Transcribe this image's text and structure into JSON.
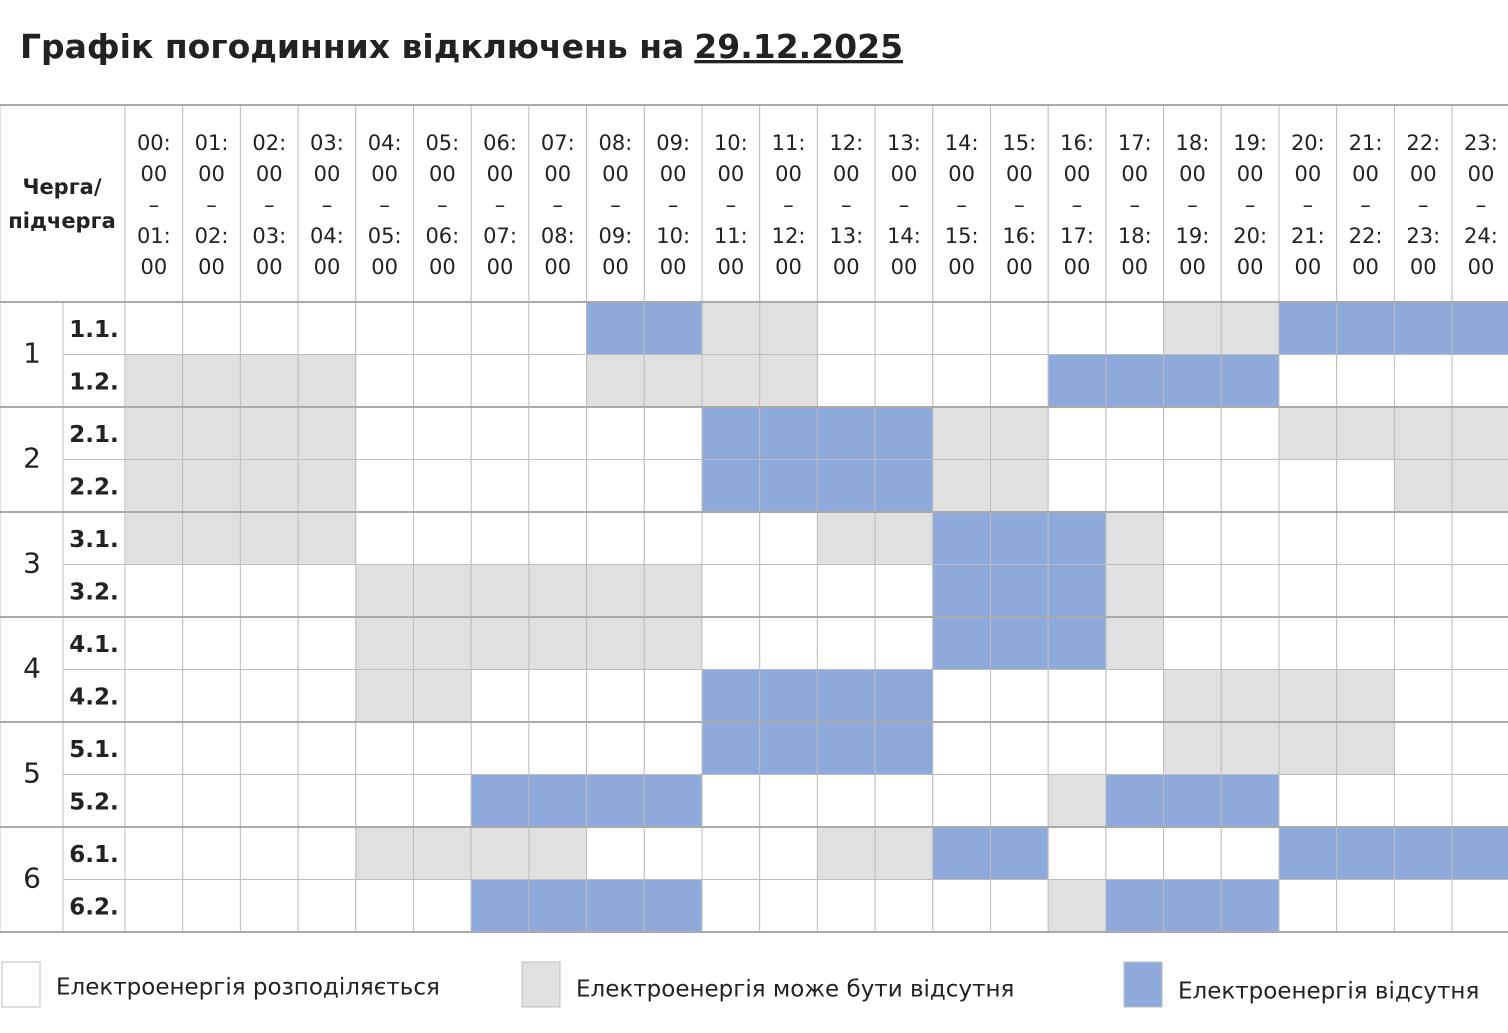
{
  "title": "Графік погодинних відключень на",
  "date": "29.12.2025",
  "table": {
    "corner": [
      "Черга/",
      "підчерга"
    ],
    "hours": [
      [
        "00:",
        "00",
        "–",
        "01:",
        "00"
      ],
      [
        "01:",
        "00",
        "–",
        "02:",
        "00"
      ],
      [
        "02:",
        "00",
        "–",
        "03:",
        "00"
      ],
      [
        "03:",
        "00",
        "–",
        "04:",
        "00"
      ],
      [
        "04:",
        "00",
        "–",
        "05:",
        "00"
      ],
      [
        "05:",
        "00",
        "–",
        "06:",
        "00"
      ],
      [
        "06:",
        "00",
        "–",
        "07:",
        "00"
      ],
      [
        "07:",
        "00",
        "–",
        "08:",
        "00"
      ],
      [
        "08:",
        "00",
        "–",
        "09:",
        "00"
      ],
      [
        "09:",
        "00",
        "–",
        "10:",
        "00"
      ],
      [
        "10:",
        "00",
        "–",
        "11:",
        "00"
      ],
      [
        "11:",
        "00",
        "–",
        "12:",
        "00"
      ],
      [
        "12:",
        "00",
        "–",
        "13:",
        "00"
      ],
      [
        "13:",
        "00",
        "–",
        "14:",
        "00"
      ],
      [
        "14:",
        "00",
        "–",
        "15:",
        "00"
      ],
      [
        "15:",
        "00",
        "–",
        "16:",
        "00"
      ],
      [
        "16:",
        "00",
        "–",
        "17:",
        "00"
      ],
      [
        "17:",
        "00",
        "–",
        "18:",
        "00"
      ],
      [
        "18:",
        "00",
        "–",
        "19:",
        "00"
      ],
      [
        "19:",
        "00",
        "–",
        "20:",
        "00"
      ],
      [
        "20:",
        "00",
        "–",
        "21:",
        "00"
      ],
      [
        "21:",
        "00",
        "–",
        "22:",
        "00"
      ],
      [
        "22:",
        "00",
        "–",
        "23:",
        "00"
      ],
      [
        "23:",
        "00",
        "–",
        "24:",
        "00"
      ]
    ],
    "states": [
      {
        "label": "Електроенергія розподіляється",
        "color": "#ffffff"
      },
      {
        "label": "Електроенергія може бути відсутня",
        "color": "#e0e0e0"
      },
      {
        "label": "Електроенергія відсутня",
        "color": "#8eaadc"
      }
    ],
    "groups": [
      {
        "label": "1",
        "rows": [
          {
            "label": "1.1.",
            "cells": [
              0,
              0,
              0,
              0,
              0,
              0,
              0,
              0,
              2,
              2,
              1,
              1,
              0,
              0,
              0,
              0,
              0,
              0,
              1,
              1,
              2,
              2,
              2,
              2
            ]
          },
          {
            "label": "1.2.",
            "cells": [
              1,
              1,
              1,
              1,
              0,
              0,
              0,
              0,
              1,
              1,
              1,
              1,
              0,
              0,
              0,
              0,
              2,
              2,
              2,
              2,
              0,
              0,
              0,
              0
            ]
          }
        ]
      },
      {
        "label": "2",
        "rows": [
          {
            "label": "2.1.",
            "cells": [
              1,
              1,
              1,
              1,
              0,
              0,
              0,
              0,
              0,
              0,
              2,
              2,
              2,
              2,
              1,
              1,
              0,
              0,
              0,
              0,
              1,
              1,
              1,
              1
            ]
          },
          {
            "label": "2.2.",
            "cells": [
              1,
              1,
              1,
              1,
              0,
              0,
              0,
              0,
              0,
              0,
              2,
              2,
              2,
              2,
              1,
              1,
              0,
              0,
              0,
              0,
              0,
              0,
              1,
              1
            ]
          }
        ]
      },
      {
        "label": "3",
        "rows": [
          {
            "label": "3.1.",
            "cells": [
              1,
              1,
              1,
              1,
              0,
              0,
              0,
              0,
              0,
              0,
              0,
              0,
              1,
              1,
              2,
              2,
              2,
              1,
              0,
              0,
              0,
              0,
              0,
              0
            ]
          },
          {
            "label": "3.2.",
            "cells": [
              0,
              0,
              0,
              0,
              1,
              1,
              1,
              1,
              1,
              1,
              0,
              0,
              0,
              0,
              2,
              2,
              2,
              1,
              0,
              0,
              0,
              0,
              0,
              0
            ]
          }
        ]
      },
      {
        "label": "4",
        "rows": [
          {
            "label": "4.1.",
            "cells": [
              0,
              0,
              0,
              0,
              1,
              1,
              1,
              1,
              1,
              1,
              0,
              0,
              0,
              0,
              2,
              2,
              2,
              1,
              0,
              0,
              0,
              0,
              0,
              0
            ]
          },
          {
            "label": "4.2.",
            "cells": [
              0,
              0,
              0,
              0,
              1,
              1,
              0,
              0,
              0,
              0,
              2,
              2,
              2,
              2,
              0,
              0,
              0,
              0,
              1,
              1,
              1,
              1,
              0,
              0
            ]
          }
        ]
      },
      {
        "label": "5",
        "rows": [
          {
            "label": "5.1.",
            "cells": [
              0,
              0,
              0,
              0,
              0,
              0,
              0,
              0,
              0,
              0,
              2,
              2,
              2,
              2,
              0,
              0,
              0,
              0,
              1,
              1,
              1,
              1,
              0,
              0
            ]
          },
          {
            "label": "5.2.",
            "cells": [
              0,
              0,
              0,
              0,
              0,
              0,
              2,
              2,
              2,
              2,
              0,
              0,
              0,
              0,
              0,
              0,
              1,
              2,
              2,
              2,
              0,
              0,
              0,
              0
            ]
          }
        ]
      },
      {
        "label": "6",
        "rows": [
          {
            "label": "6.1.",
            "cells": [
              0,
              0,
              0,
              0,
              1,
              1,
              1,
              1,
              0,
              0,
              0,
              0,
              1,
              1,
              2,
              2,
              0,
              0,
              0,
              0,
              2,
              2,
              2,
              2
            ]
          },
          {
            "label": "6.2.",
            "cells": [
              0,
              0,
              0,
              0,
              0,
              0,
              2,
              2,
              2,
              2,
              0,
              0,
              0,
              0,
              0,
              0,
              1,
              2,
              2,
              2,
              0,
              0,
              0,
              0
            ]
          }
        ]
      }
    ]
  }
}
